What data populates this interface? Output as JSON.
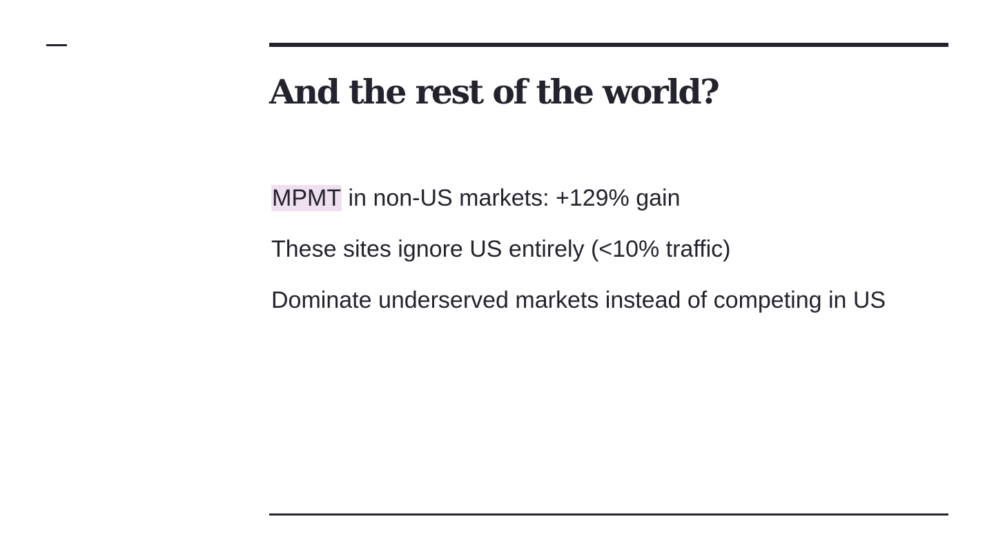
{
  "slide": {
    "title": "And the rest of the world?",
    "bullets": [
      {
        "highlight": "MPMT",
        "text": " in non-US markets: +129% gain"
      },
      {
        "highlight": "",
        "text": "These sites ignore US entirely (<10% traffic)"
      },
      {
        "highlight": "",
        "text": "Dominate underserved markets instead of competing in US"
      }
    ]
  },
  "colors": {
    "text": "#23232e",
    "rule": "#23232e",
    "highlight_bg": "#efe0ef",
    "background": "#ffffff"
  }
}
